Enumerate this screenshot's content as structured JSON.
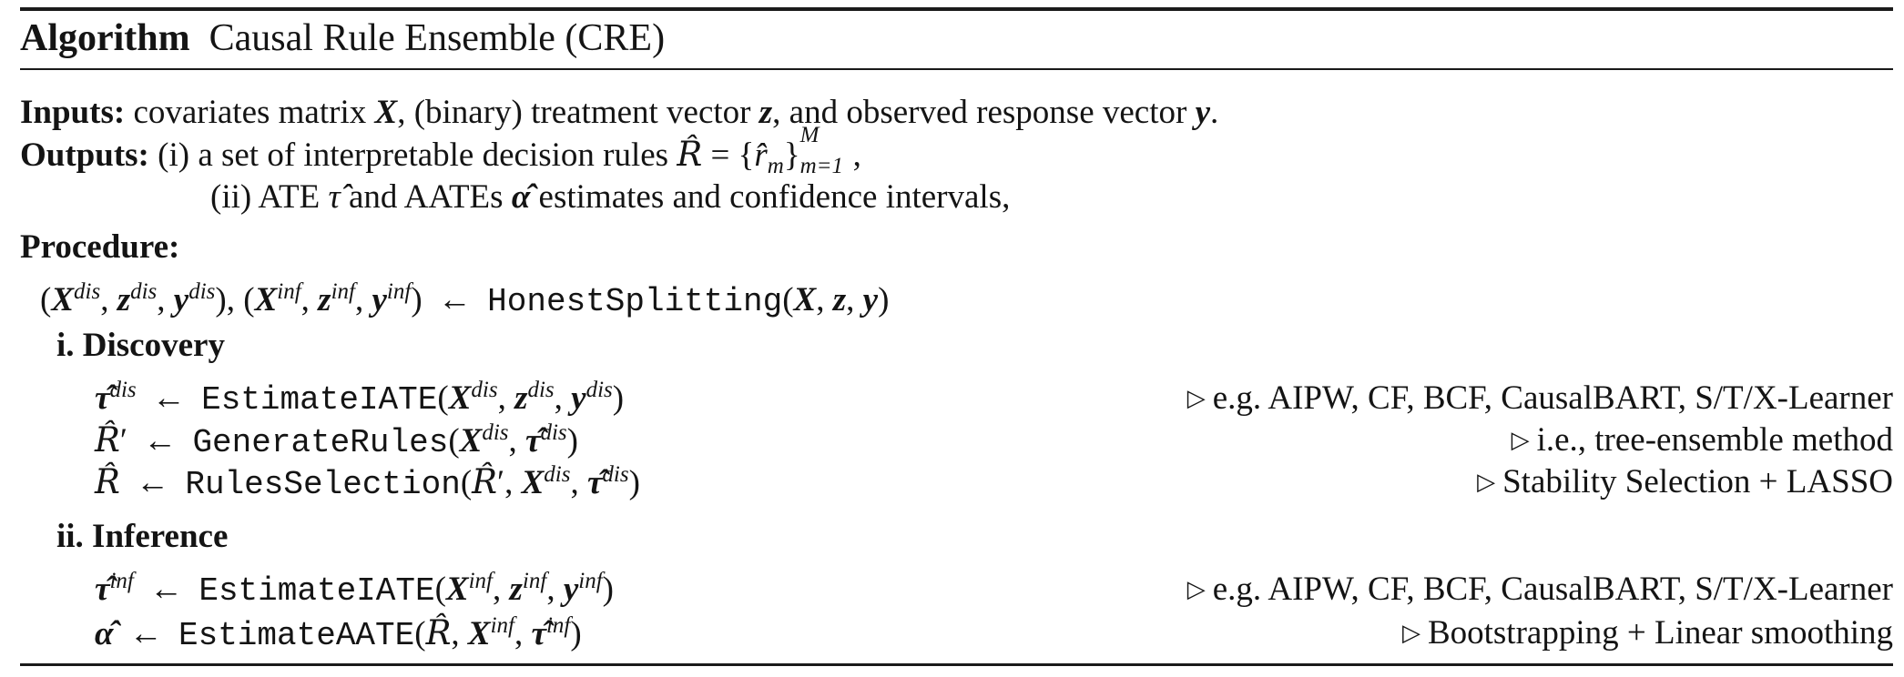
{
  "title": {
    "label": "Algorithm",
    "name": "Causal Rule Ensemble (CRE)"
  },
  "inputs": {
    "label": "Inputs:",
    "text_a": "covariates matrix",
    "text_b": ", (binary) treatment vector",
    "text_c": ", and observed response vector",
    "text_d": "."
  },
  "outputs": {
    "label": "Outputs:",
    "item1_text": "(i) a set of interpretable decision rules",
    "item2_a": "(ii) ATE",
    "item2_b": "and AATEs",
    "item2_c": "estimates and confidence intervals,"
  },
  "procedure": {
    "label": "Procedure:",
    "split_fn": "HonestSplitting"
  },
  "discovery": {
    "header": "i.  Discovery",
    "steps": [
      {
        "fn": "EstimateIATE",
        "comment": "e.g.  AIPW, CF, BCF, CausalBART, S/T/X-Learner"
      },
      {
        "fn": "GenerateRules",
        "comment": "i.e., tree-ensemble method"
      },
      {
        "fn": "RulesSelection",
        "comment": "Stability Selection + LASSO"
      }
    ]
  },
  "inference": {
    "header": "ii.  Inference",
    "steps": [
      {
        "fn": "EstimateIATE",
        "comment": "e.g.  AIPW, CF, BCF, CausalBART, S/T/X-Learner"
      },
      {
        "fn": "EstimateAATE",
        "comment": "Bootstrapping + Linear smoothing"
      }
    ]
  },
  "math": {
    "X": "X",
    "z": "z",
    "y": "y",
    "dis": "dis",
    "inf": "inf",
    "tau": "τ",
    "alpha": "α",
    "R": "R",
    "m_sub": "m",
    "M_sup": "M",
    "range_sub": "m=1",
    "arrow": "←",
    "comment_marker": "▷"
  }
}
